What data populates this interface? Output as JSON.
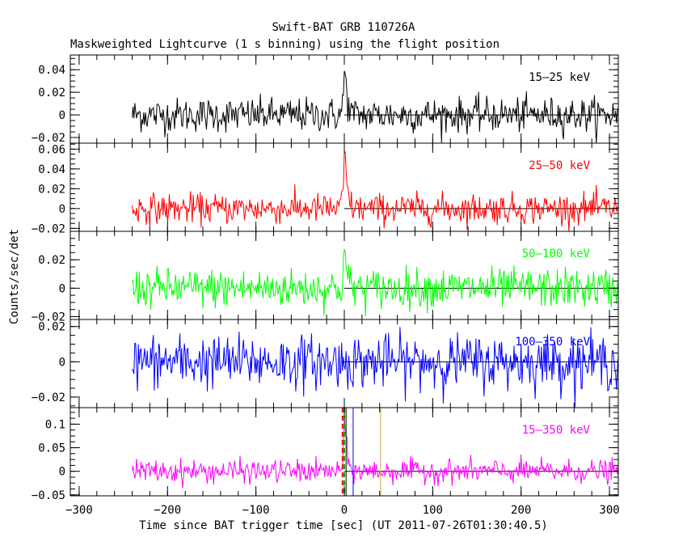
{
  "chart_data": {
    "type": "line",
    "title": "Swift-BAT GRB 110726A",
    "subtitle": "Maskweighted Lightcurve (1 s binning) using the flight position",
    "xlabel": "Time since BAT trigger time [sec] (UT 2011-07-26T01:30:40.5)",
    "ylabel": "Counts/sec/det",
    "xlim": [
      -310,
      310
    ],
    "x_ticks": [
      -300,
      -200,
      -100,
      0,
      100,
      200,
      300
    ],
    "x_tick_labels": [
      "−300",
      "−200",
      "−100",
      "0",
      "100",
      "200",
      "300"
    ],
    "data_x_range": [
      -240,
      310
    ],
    "peak_time": 0,
    "grid": false,
    "panels": [
      {
        "name": "15–25 keV",
        "color": "#000000",
        "ylim": [
          -0.025,
          0.053
        ],
        "y_ticks": [
          -0.02,
          0,
          0.02,
          0.04
        ],
        "y_tick_labels": [
          "−0.02",
          "0",
          "0.02",
          "0.04"
        ],
        "noise_sigma": 0.0075,
        "peak": 0.045
      },
      {
        "name": "25–50 keV",
        "color": "#ff0000",
        "ylim": [
          -0.023,
          0.066
        ],
        "y_ticks": [
          -0.02,
          0,
          0.02,
          0.04,
          0.06
        ],
        "y_tick_labels": [
          "−0.02",
          "0",
          "0.02",
          "0.04",
          "0.06"
        ],
        "noise_sigma": 0.0075,
        "peak": 0.063
      },
      {
        "name": "50–100 keV",
        "color": "#00ff00",
        "ylim": [
          -0.022,
          0.04
        ],
        "y_ticks": [
          -0.02,
          0,
          0.02
        ],
        "y_tick_labels": [
          "−0.02",
          "0",
          "0.02"
        ],
        "noise_sigma": 0.0068,
        "peak": 0.03
      },
      {
        "name": "100–350 keV",
        "color": "#0000ff",
        "ylim": [
          -0.026,
          0.024
        ],
        "y_ticks": [
          -0.02,
          0,
          0.02
        ],
        "y_tick_labels": [
          "−0.02",
          "0",
          "0.02"
        ],
        "noise_sigma": 0.0075,
        "peak": 0
      },
      {
        "name": "15–350 keV",
        "color": "#ff00ff",
        "ylim": [
          -0.052,
          0.135
        ],
        "y_ticks": [
          -0.05,
          0,
          0.05,
          0.1
        ],
        "y_tick_labels": [
          "−0.05",
          "0",
          "0.05",
          "0.1"
        ],
        "noise_sigma": 0.012,
        "peak": 0.11
      }
    ],
    "vertical_markers": [
      {
        "x": -2,
        "color": "#ff0000",
        "style": "dashed"
      },
      {
        "x": 0,
        "color": "#00aa00",
        "style": "dashed"
      },
      {
        "x": 2,
        "color": "#000000",
        "style": "solid"
      },
      {
        "x": 10,
        "color": "#0000ff",
        "style": "solid"
      },
      {
        "x": 41,
        "color": "#c8a040",
        "style": "solid"
      }
    ]
  }
}
